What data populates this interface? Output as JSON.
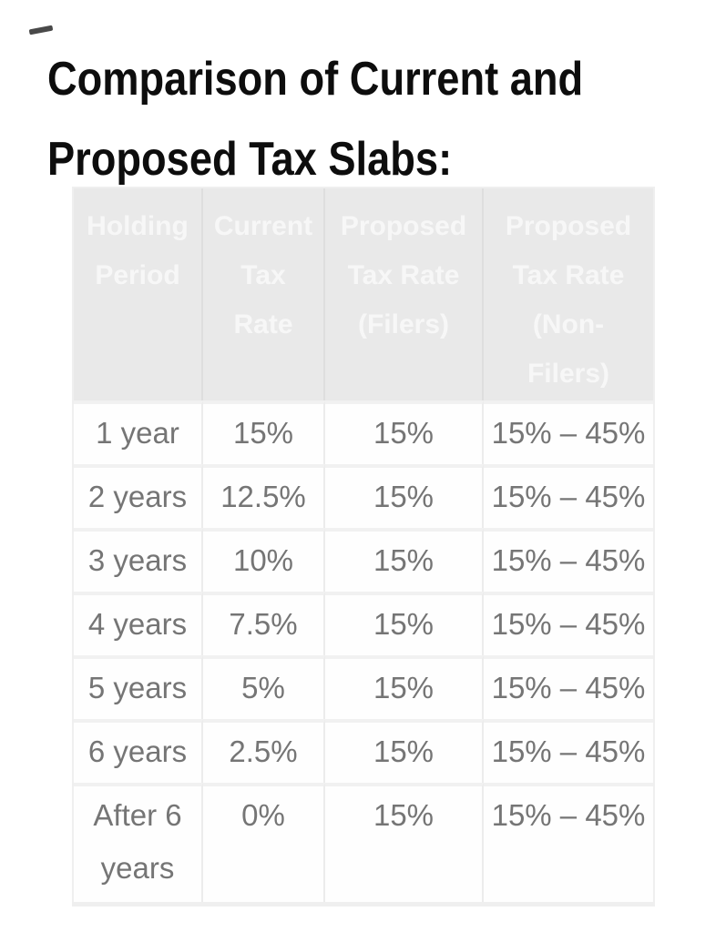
{
  "title": {
    "text": "Comparison of Current and Proposed Tax Slabs:",
    "lines": [
      "Comparison of Current and",
      "Proposed Tax Slabs:"
    ]
  },
  "colors": {
    "title_color": "#0d0d0d",
    "header_bg": "#e9e9e9",
    "header_text": "#f7f7f7",
    "body_text": "#757575",
    "row_border": "#f1f1f1",
    "col_border": "#ececec",
    "header_col_border": "#dedede",
    "outer_border": "#efefef",
    "page_bg": "#ffffff"
  },
  "table": {
    "headers": [
      {
        "label": "Holding Period",
        "lines": [
          "Holding",
          "Period"
        ]
      },
      {
        "label": "Current Tax Rate",
        "lines": [
          "Current",
          "Tax",
          "Rate"
        ]
      },
      {
        "label": "Proposed Tax Rate (Filers)",
        "lines": [
          "Proposed",
          "Tax Rate",
          "(Filers)"
        ]
      },
      {
        "label": "Proposed Tax Rate (Non-Filers)",
        "lines": [
          "Proposed",
          "Tax Rate",
          "(Non-",
          "Filers)"
        ]
      }
    ],
    "rows": [
      {
        "cells": [
          "1 year",
          "15%",
          "15%",
          "15% – 45%"
        ]
      },
      {
        "cells": [
          "2 years",
          "12.5%",
          "15%",
          "15% – 45%"
        ]
      },
      {
        "cells": [
          "3 years",
          "10%",
          "15%",
          "15% – 45%"
        ]
      },
      {
        "cells": [
          "4 years",
          "7.5%",
          "15%",
          "15% – 45%"
        ]
      },
      {
        "cells": [
          "5 years",
          "5%",
          "15%",
          "15% – 45%"
        ]
      },
      {
        "cells": [
          "6 years",
          "2.5%",
          "15%",
          "15% – 45%"
        ]
      },
      {
        "cells": [
          "After 6 years",
          "0%",
          "15%",
          "15% – 45%"
        ]
      }
    ]
  }
}
